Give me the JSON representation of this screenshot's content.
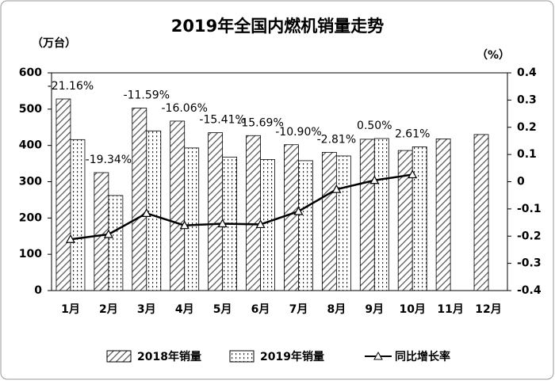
{
  "chart_data": {
    "type": "bar",
    "title": "2019年全国内燃机销量走势",
    "y_label": "（万台）",
    "y2_label": "（%）",
    "categories": [
      "1月",
      "2月",
      "3月",
      "4月",
      "5月",
      "6月",
      "7月",
      "8月",
      "9月",
      "10月",
      "11月",
      "12月"
    ],
    "series": [
      {
        "name": "2018年销量",
        "type": "bar",
        "pattern": "hatch",
        "color": "#555555",
        "values": [
          528,
          325,
          503,
          467,
          435,
          427,
          402,
          381,
          417,
          386,
          418,
          430
        ]
      },
      {
        "name": "2019年销量",
        "type": "bar",
        "pattern": "dots",
        "color": "#333333",
        "values": [
          416,
          262,
          440,
          393,
          368,
          361,
          358,
          371,
          419,
          396,
          null,
          null
        ]
      },
      {
        "name": "同比增长率",
        "type": "line",
        "axis": "y2",
        "color": "#000000",
        "values": [
          -0.2116,
          -0.1934,
          -0.1159,
          -0.1606,
          -0.1541,
          -0.1569,
          -0.109,
          -0.0281,
          0.005,
          0.0261,
          null,
          null
        ],
        "value_labels": [
          "-21.16%",
          "-19.34%",
          "-11.59%",
          "-16.06%",
          "-15.41%",
          "-15.69%",
          "-10.90%",
          "-2.81%",
          "0.50%",
          "2.61%",
          null,
          null
        ]
      }
    ],
    "ylim": [
      0,
      600
    ],
    "yticks": [
      0,
      100,
      200,
      300,
      400,
      500,
      600
    ],
    "y2lim": [
      -0.4,
      0.4
    ],
    "y2ticks": [
      -0.4,
      -0.3,
      -0.2,
      -0.1,
      0,
      0.1,
      0.2,
      0.3,
      0.4
    ]
  }
}
